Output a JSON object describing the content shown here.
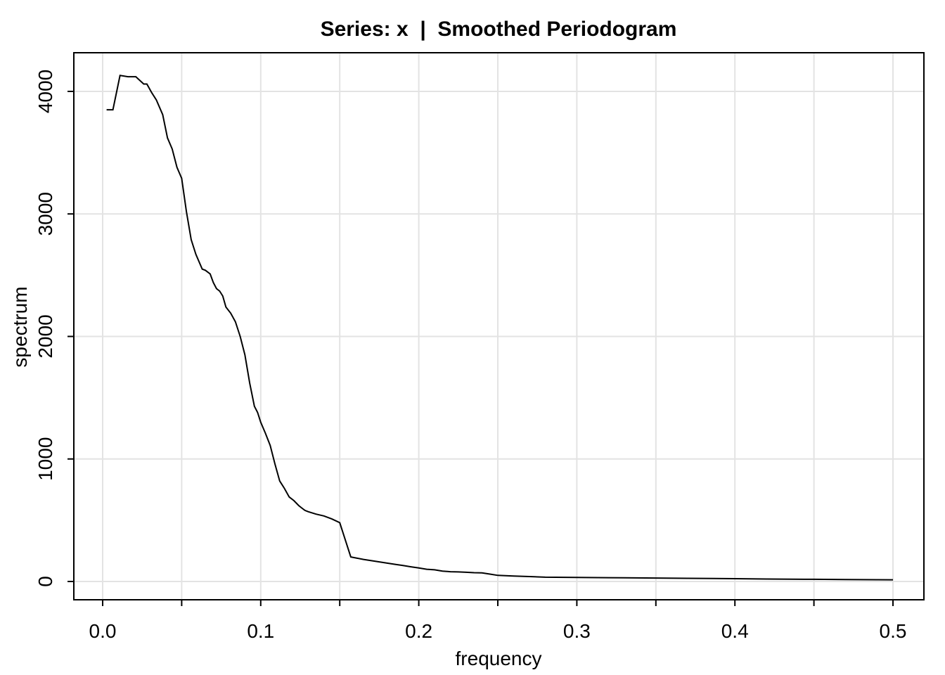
{
  "chart_data": {
    "type": "line",
    "title": "Series: x  |  Smoothed Periodogram",
    "xlabel": "frequency",
    "ylabel": "spectrum",
    "xlim": [
      0.0,
      0.5
    ],
    "ylim": [
      0,
      4200
    ],
    "x_ticks": [
      {
        "value": 0.0,
        "label": "0.0"
      },
      {
        "value": 0.1,
        "label": "0.1"
      },
      {
        "value": 0.2,
        "label": "0.2"
      },
      {
        "value": 0.3,
        "label": "0.3"
      },
      {
        "value": 0.4,
        "label": "0.4"
      },
      {
        "value": 0.5,
        "label": "0.5"
      }
    ],
    "x_minor_ticks": [
      0.05,
      0.15,
      0.25,
      0.35,
      0.45
    ],
    "y_ticks": [
      {
        "value": 0,
        "label": "0"
      },
      {
        "value": 1000,
        "label": "1000"
      },
      {
        "value": 2000,
        "label": "2000"
      },
      {
        "value": 3000,
        "label": "3000"
      },
      {
        "value": 4000,
        "label": "4000"
      }
    ],
    "grid": true,
    "line_color": "#000000",
    "grid_color": "#e3e3e3",
    "series": [
      {
        "x": [
          0.0025,
          0.0065,
          0.011,
          0.016,
          0.021,
          0.026,
          0.028,
          0.031,
          0.034,
          0.038,
          0.041,
          0.044,
          0.047,
          0.05,
          0.053,
          0.056,
          0.059,
          0.063,
          0.065,
          0.068,
          0.07,
          0.072,
          0.074,
          0.076,
          0.078,
          0.081,
          0.084,
          0.087,
          0.09,
          0.093,
          0.096,
          0.098,
          0.1,
          0.103,
          0.106,
          0.109,
          0.112,
          0.115,
          0.118,
          0.121,
          0.124,
          0.126,
          0.128,
          0.13,
          0.135,
          0.14,
          0.145,
          0.15,
          0.157,
          0.161,
          0.165,
          0.17,
          0.175,
          0.18,
          0.185,
          0.19,
          0.195,
          0.2,
          0.205,
          0.21,
          0.215,
          0.22,
          0.225,
          0.23,
          0.235,
          0.24,
          0.245,
          0.25,
          0.26,
          0.27,
          0.28,
          0.3,
          0.32,
          0.35,
          0.37,
          0.4,
          0.42,
          0.45,
          0.47,
          0.5
        ],
        "y": [
          3850,
          3850,
          4130,
          4120,
          4120,
          4060,
          4060,
          3990,
          3930,
          3810,
          3620,
          3530,
          3380,
          3290,
          3020,
          2790,
          2670,
          2550,
          2540,
          2510,
          2440,
          2390,
          2370,
          2330,
          2240,
          2190,
          2120,
          2000,
          1850,
          1620,
          1430,
          1380,
          1300,
          1210,
          1110,
          960,
          820,
          760,
          690,
          660,
          620,
          600,
          580,
          570,
          550,
          535,
          510,
          480,
          200,
          190,
          180,
          170,
          160,
          150,
          140,
          130,
          120,
          110,
          100,
          95,
          85,
          80,
          78,
          75,
          72,
          70,
          60,
          50,
          45,
          40,
          35,
          33,
          31,
          28,
          26,
          23,
          20,
          18,
          16,
          14
        ]
      }
    ]
  }
}
